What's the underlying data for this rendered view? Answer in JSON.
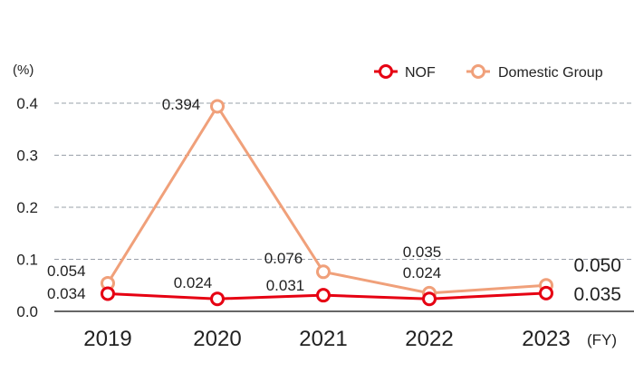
{
  "chart_data": {
    "type": "line",
    "unit_label": "(%)",
    "x_unit_label": "(FY)",
    "categories": [
      "2019",
      "2020",
      "2021",
      "2022",
      "2023"
    ],
    "y_ticks": [
      "0.0",
      "0.1",
      "0.2",
      "0.3",
      "0.4"
    ],
    "ylim": [
      0,
      0.4
    ],
    "grid": true,
    "legend_position": "top-right",
    "series": [
      {
        "name": "NOF",
        "values": [
          0.034,
          0.024,
          0.031,
          0.024,
          0.035
        ],
        "labels": [
          "0.034",
          "0.024",
          "0.031",
          "0.024",
          "0.035"
        ],
        "color": "#e60012"
      },
      {
        "name": "Domestic Group",
        "values": [
          0.054,
          0.394,
          0.076,
          0.035,
          0.05
        ],
        "labels": [
          "0.054",
          "0.394",
          "0.076",
          "0.035",
          "0.050"
        ],
        "color": "#f0a07a"
      }
    ],
    "axis_color": "#333333",
    "grid_color": "#9aa0aa"
  }
}
